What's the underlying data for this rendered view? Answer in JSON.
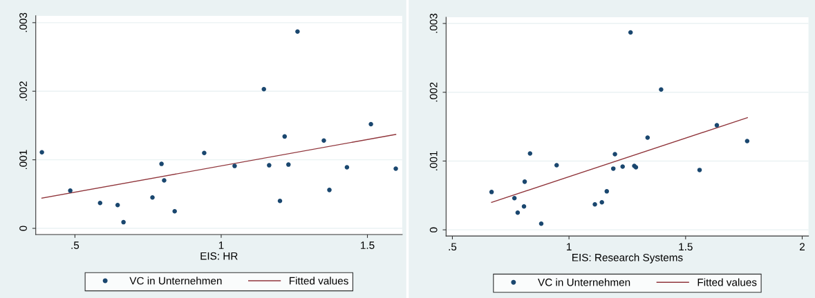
{
  "chart_data": [
    {
      "type": "scatter",
      "xlabel": "EIS: HR",
      "xlim": [
        0.366,
        1.619
      ],
      "ylim": [
        -9e-05,
        0.0031
      ],
      "xticks": [
        {
          "value": 0.5,
          "label": ".5"
        },
        1,
        1.5
      ],
      "yticks": [
        0,
        {
          "value": 0.001,
          "label": ".001"
        },
        {
          "value": 0.002,
          "label": ".002"
        },
        {
          "value": 0.003,
          "label": ".003"
        }
      ],
      "grid": "y",
      "legend": "bottom",
      "series": [
        {
          "name": "VC in Unternehmen",
          "marker": "circle",
          "color": "#1a476f",
          "x": [
            0.387,
            0.484,
            0.586,
            0.646,
            0.666,
            0.765,
            0.796,
            0.805,
            0.841,
            0.942,
            1.046,
            1.146,
            1.164,
            1.201,
            1.217,
            1.23,
            1.261,
            1.351,
            1.37,
            1.43,
            1.512,
            1.597
          ],
          "values": [
            0.00111,
            0.00055,
            0.00037,
            0.00034,
            9e-05,
            0.00045,
            0.00094,
            0.0007,
            0.00025,
            0.0011,
            0.00091,
            0.00203,
            0.00092,
            0.0004,
            0.00134,
            0.00093,
            0.00287,
            0.00128,
            0.00056,
            0.00089,
            0.00152,
            0.00087
          ]
        },
        {
          "name": "Fitted values",
          "type": "line",
          "marker": "none",
          "color": "#90353b",
          "x": [
            0.387,
            1.597
          ],
          "values": [
            0.00044,
            0.00137
          ]
        }
      ]
    },
    {
      "type": "scatter",
      "xlabel": "EIS: Research Systems",
      "xlim": [
        0.473,
        2.027
      ],
      "ylim": [
        -9e-05,
        0.00309
      ],
      "xticks": [
        {
          "value": 0.5,
          "label": ".5"
        },
        1,
        1.5,
        2
      ],
      "yticks": [
        0,
        {
          "value": 0.001,
          "label": ".001"
        },
        {
          "value": 0.002,
          "label": ".002"
        },
        {
          "value": 0.003,
          "label": ".003"
        }
      ],
      "grid": "y",
      "legend": "bottom",
      "series": [
        {
          "name": "VC in Unternehmen",
          "marker": "circle",
          "color": "#1a476f",
          "x": [
            0.668,
            0.766,
            0.78,
            0.807,
            0.81,
            0.833,
            0.881,
            0.947,
            1.111,
            1.141,
            1.162,
            1.19,
            1.197,
            1.23,
            1.264,
            1.28,
            1.287,
            1.337,
            1.395,
            1.56,
            1.634,
            1.764
          ],
          "values": [
            0.00055,
            0.00046,
            0.00025,
            0.00034,
            0.0007,
            0.00111,
            9e-05,
            0.00094,
            0.00037,
            0.0004,
            0.00056,
            0.00089,
            0.0011,
            0.00092,
            0.00287,
            0.00093,
            0.00091,
            0.00134,
            0.00204,
            0.00087,
            0.00152,
            0.00129
          ]
        },
        {
          "name": "Fitted values",
          "type": "line",
          "marker": "none",
          "color": "#90353b",
          "x": [
            0.668,
            1.765
          ],
          "values": [
            0.0004,
            0.00163
          ]
        }
      ]
    }
  ]
}
